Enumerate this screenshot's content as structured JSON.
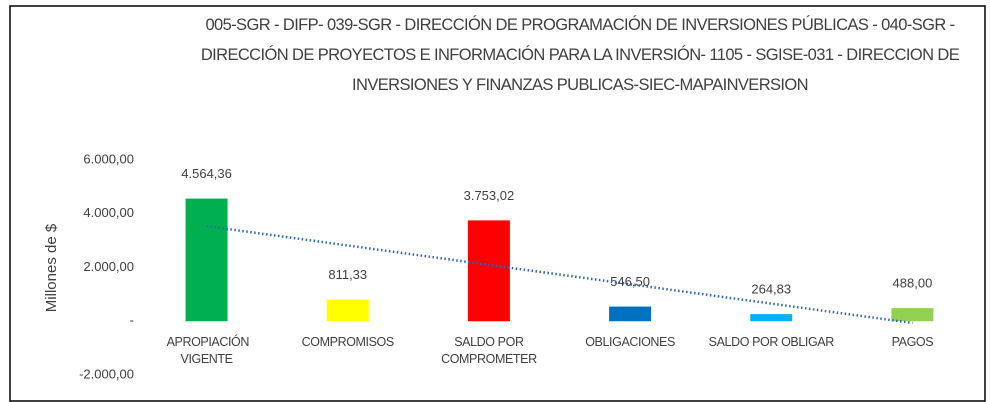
{
  "chart_data": {
    "type": "bar",
    "title": "005-SGR - DIFP- 039-SGR - DIRECCIÓN DE PROGRAMACIÓN DE INVERSIONES PÚBLICAS - 040-SGR - DIRECCIÓN DE PROYECTOS E INFORMACIÓN PARA LA INVERSIÓN- 1105 - SGISE-031 - DIRECCION DE INVERSIONES Y FINANZAS PUBLICAS-SIEC-MAPAINVERSION",
    "y_label": "Millones de $",
    "categories": [
      "APROPIACIÓN VIGENTE",
      "COMPROMISOS",
      "SALDO POR COMPROMETER",
      "OBLIGACIONES",
      "SALDO POR OBLIGAR",
      "PAGOS"
    ],
    "values": [
      4564.36,
      811.33,
      3753.02,
      546.5,
      264.83,
      488.0
    ],
    "value_labels": [
      "4.564,36",
      "811,33",
      "3.753,02",
      "546,50",
      "264,83",
      "488,00"
    ],
    "colors": [
      "#00b050",
      "#ffff00",
      "#ff0000",
      "#0070c0",
      "#00b0f0",
      "#92d050"
    ],
    "ylim": [
      -2000,
      6000
    ],
    "yticks": [
      {
        "value": -2000,
        "label": "-2.000,00"
      },
      {
        "value": 0,
        "label": "-"
      },
      {
        "value": 2000,
        "label": "2.000,00"
      },
      {
        "value": 4000,
        "label": "4.000,00"
      },
      {
        "value": 6000,
        "label": "6.000,00"
      }
    ],
    "trendline": true,
    "trendline_color": "#2e64c0"
  }
}
